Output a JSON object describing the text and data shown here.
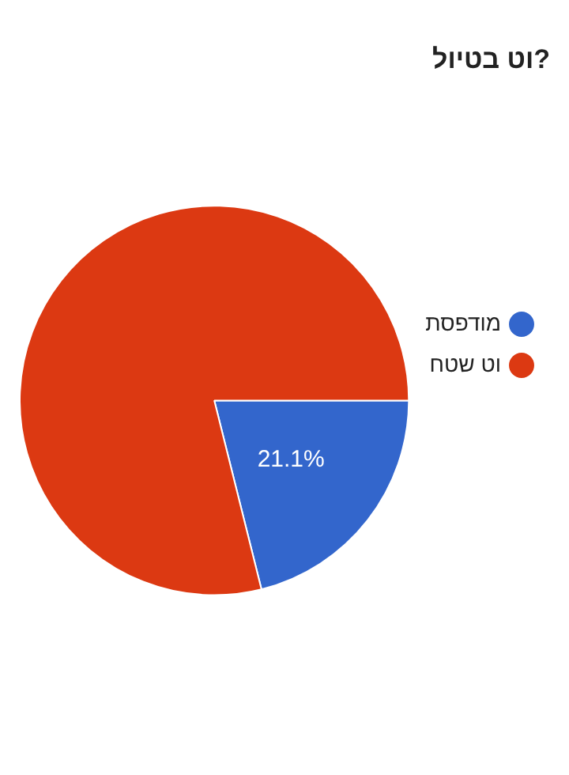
{
  "chart_data": {
    "type": "pie",
    "title": "וט בטיול?",
    "categories": [
      "מודפסת",
      "וט שטח"
    ],
    "values": [
      21.1,
      78.9
    ],
    "colors": [
      "#3366cc",
      "#dc3912"
    ],
    "value_labels": [
      "21.1%",
      null
    ],
    "legend": "right"
  }
}
